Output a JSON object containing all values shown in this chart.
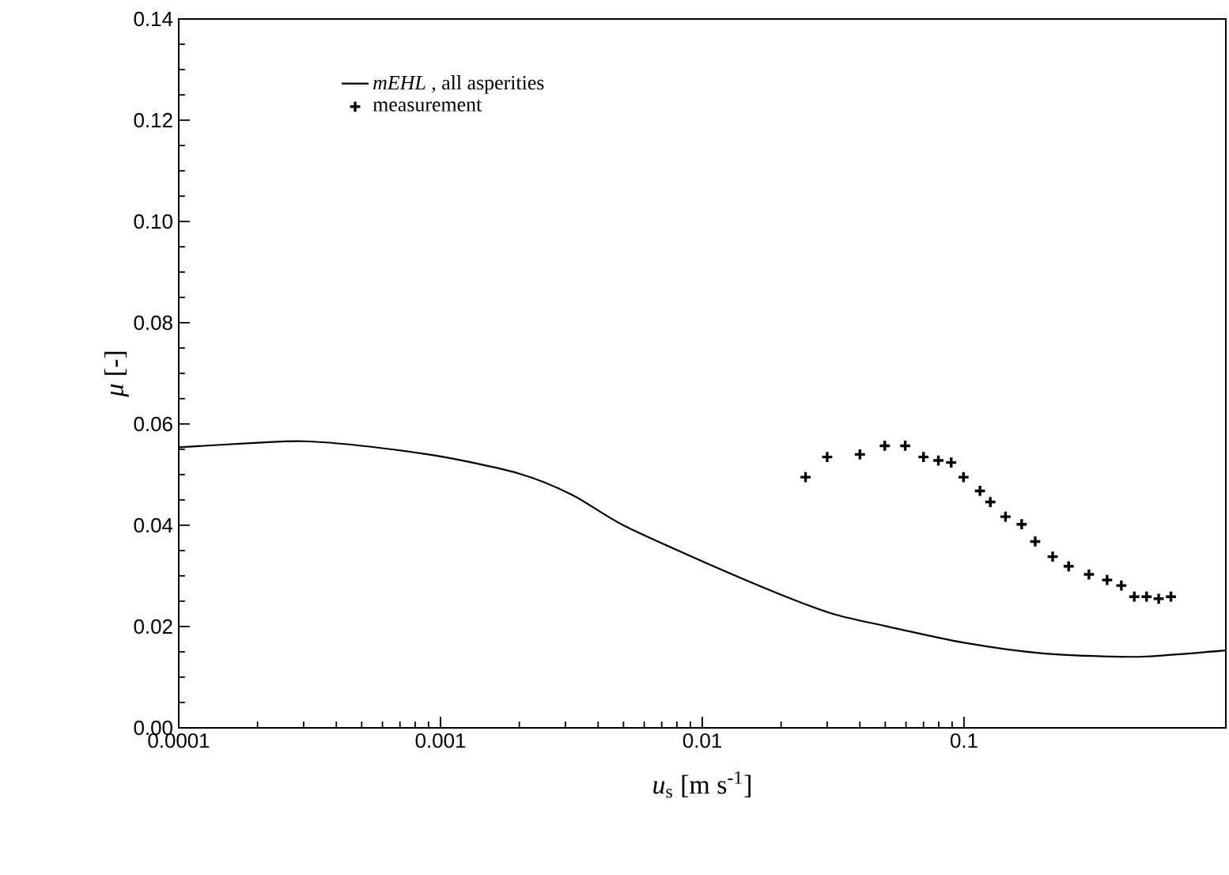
{
  "chart_data": {
    "type": "line",
    "xlabel": "*u*$_{s}$ [m s$^{-1}$]",
    "ylabel": "*μ* [-]",
    "log": "x",
    "grid": false,
    "legend": "top left",
    "xlim": [
      0.0001,
      1
    ],
    "ylim": [
      0,
      0.14
    ],
    "xticks": [
      0.0001,
      0.001,
      0.01,
      0.1
    ],
    "yticks": [
      {
        "value": 0,
        "label": "0.00"
      },
      {
        "value": 0.02,
        "label": "0.02"
      },
      {
        "value": 0.04,
        "label": "0.04"
      },
      {
        "value": 0.06,
        "label": "0.06"
      },
      {
        "value": 0.08,
        "label": "0.08"
      },
      {
        "value": 0.1,
        "label": "0.10"
      },
      {
        "value": 0.12,
        "label": "0.12"
      },
      {
        "value": 0.14,
        "label": "0.14"
      }
    ],
    "series": [
      {
        "name": "*mEHL* , all asperities",
        "color": "#000000",
        "marker": "none",
        "line_style": "solid",
        "x": [
          0.0001,
          0.0002,
          0.0003,
          0.0005,
          0.001,
          0.002,
          0.00316,
          0.005,
          0.01,
          0.02,
          0.0316,
          0.05,
          0.1,
          0.2,
          0.35,
          0.5,
          1
        ],
        "values": [
          0.0554,
          0.0563,
          0.0566,
          0.0557,
          0.0536,
          0.0502,
          0.0461,
          0.04,
          0.0329,
          0.0263,
          0.0225,
          0.0201,
          0.0168,
          0.0147,
          0.0141,
          0.0141,
          0.0153
        ]
      },
      {
        "name": "measurement",
        "type": "scatter",
        "color": "#000000",
        "marker": "cross",
        "x": [
          0.0248,
          0.03,
          0.04,
          0.0498,
          0.0596,
          0.07,
          0.0798,
          0.0893,
          0.0995,
          0.115,
          0.126,
          0.144,
          0.166,
          0.187,
          0.218,
          0.251,
          0.3,
          0.352,
          0.399,
          0.447,
          0.498,
          0.554,
          0.617
        ],
        "values": [
          0.0495,
          0.0535,
          0.054,
          0.0557,
          0.0557,
          0.0535,
          0.0528,
          0.0524,
          0.0495,
          0.0468,
          0.0446,
          0.0417,
          0.0402,
          0.0368,
          0.0338,
          0.0319,
          0.0303,
          0.0292,
          0.0281,
          0.0259,
          0.0259,
          0.0255,
          0.0259
        ]
      }
    ]
  }
}
